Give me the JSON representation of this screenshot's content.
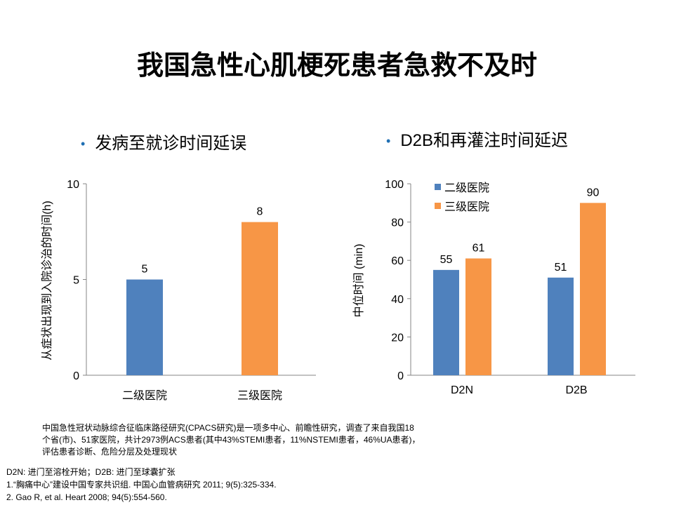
{
  "title": "我国急性心肌梗死患者急救不及时",
  "bullets": [
    "发病至就诊时间延误",
    "D2B和再灌注时间延迟"
  ],
  "colors": {
    "blue": "#4f81bd",
    "orange": "#f79646",
    "axis": "#868686"
  },
  "chart_data": [
    {
      "type": "bar",
      "categories": [
        "二级医院",
        "三级医院"
      ],
      "values": [
        5,
        8
      ],
      "colors": [
        "#4f81bd",
        "#f79646"
      ],
      "ylabel": "从症状出现到入院诊治的时间(h)",
      "ylim": [
        0,
        10
      ],
      "yticks": [
        0,
        5,
        10
      ],
      "data_labels": [
        "5",
        "8"
      ]
    },
    {
      "type": "bar",
      "categories": [
        "D2N",
        "D2B"
      ],
      "series": [
        {
          "name": "二级医院",
          "values": [
            55,
            51
          ],
          "color": "#4f81bd"
        },
        {
          "name": "三级医院",
          "values": [
            61,
            90
          ],
          "color": "#f79646"
        }
      ],
      "ylabel": "中位时间 (min)",
      "ylim": [
        0,
        100
      ],
      "yticks": [
        0,
        20,
        40,
        60,
        80,
        100
      ],
      "legend": "top-left"
    }
  ],
  "notes": [
    "中国急性冠状动脉综合征临床路径研究(CPACS研究)是一项多中心、前瞻性研究，调查了来自我国18",
    "个省(市)、51家医院，共计2973例ACS患者(其中43%STEMI患者，11%NSTEMI患者，46%UA患者)，",
    "评估患者诊断、危险分层及处理现状"
  ],
  "refs": [
    "D2N: 进门至溶栓开始；D2B: 进门至球囊扩张",
    "1.“胸痛中心”建设中国专家共识组. 中国心血管病研究 2011; 9(5):325-334.",
    "2. Gao R, et al. Heart 2008; 94(5):554-560."
  ]
}
